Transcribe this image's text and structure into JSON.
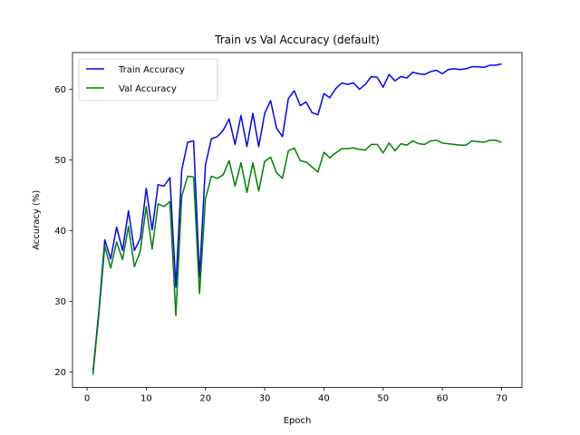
{
  "chart_data": {
    "type": "line",
    "title": "Train vs Val Accuracy (default)",
    "xlabel": "Epoch",
    "ylabel": "Accuracy (%)",
    "xlim": [
      -2.45,
      73.45
    ],
    "ylim": [
      17.8,
      65.2
    ],
    "xticks": [
      0,
      10,
      20,
      30,
      40,
      50,
      60,
      70
    ],
    "yticks": [
      20,
      30,
      40,
      50,
      60
    ],
    "grid": false,
    "legend_position": "upper-left",
    "x": [
      1,
      2,
      3,
      4,
      5,
      6,
      7,
      8,
      9,
      10,
      11,
      12,
      13,
      14,
      15,
      16,
      17,
      18,
      19,
      20,
      21,
      22,
      23,
      24,
      25,
      26,
      27,
      28,
      29,
      30,
      31,
      32,
      33,
      34,
      35,
      36,
      37,
      38,
      39,
      40,
      41,
      42,
      43,
      44,
      45,
      46,
      47,
      48,
      49,
      50,
      51,
      52,
      53,
      54,
      55,
      56,
      57,
      58,
      59,
      60,
      61,
      62,
      63,
      64,
      65,
      66,
      67,
      68,
      69,
      70
    ],
    "series": [
      {
        "name": "Train Accuracy",
        "color": "#0000ff",
        "values": [
          20.0,
          28.6,
          38.7,
          36.0,
          40.5,
          37.2,
          42.8,
          37.2,
          38.9,
          46.0,
          40.1,
          46.5,
          46.3,
          47.5,
          32.0,
          48.6,
          52.5,
          52.7,
          33.4,
          49.3,
          53.0,
          53.3,
          54.2,
          55.8,
          52.2,
          56.3,
          51.9,
          56.6,
          51.9,
          56.6,
          58.4,
          54.5,
          53.3,
          58.7,
          59.8,
          57.7,
          58.2,
          56.7,
          56.4,
          59.4,
          58.8,
          60.1,
          60.9,
          60.7,
          60.9,
          60.0,
          60.7,
          61.8,
          61.7,
          60.3,
          62.1,
          61.2,
          61.8,
          61.6,
          62.4,
          62.2,
          62.1,
          62.5,
          62.7,
          62.2,
          62.8,
          62.9,
          62.8,
          62.9,
          63.2,
          63.2,
          63.1,
          63.4,
          63.4,
          63.6
        ]
      },
      {
        "name": "Val Accuracy",
        "color": "#008000",
        "values": [
          19.6,
          28.1,
          37.8,
          34.7,
          38.4,
          35.9,
          40.6,
          34.9,
          37.1,
          43.4,
          37.4,
          43.8,
          43.4,
          44.1,
          28.0,
          44.9,
          47.7,
          47.6,
          31.1,
          44.5,
          47.7,
          47.4,
          47.9,
          49.9,
          46.3,
          49.6,
          45.4,
          49.6,
          45.6,
          49.8,
          50.4,
          48.2,
          47.4,
          51.3,
          51.7,
          49.9,
          49.7,
          49.0,
          48.3,
          51.1,
          50.3,
          51.0,
          51.6,
          51.6,
          51.7,
          51.5,
          51.4,
          52.2,
          52.2,
          51.0,
          52.4,
          51.3,
          52.3,
          52.1,
          52.7,
          52.3,
          52.2,
          52.7,
          52.8,
          52.4,
          52.3,
          52.2,
          52.1,
          52.1,
          52.7,
          52.6,
          52.5,
          52.8,
          52.8,
          52.5
        ]
      }
    ]
  }
}
